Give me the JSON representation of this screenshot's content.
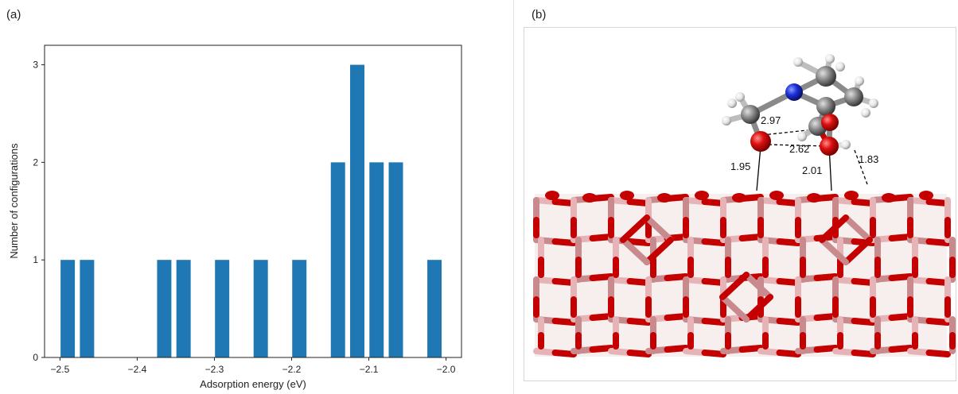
{
  "panel_a": {
    "label": "(a)"
  },
  "panel_b": {
    "label": "(b)",
    "distances": [
      "2.97",
      "2.62",
      "1.95",
      "2.01",
      "1.83"
    ]
  },
  "chart_data": {
    "type": "bar",
    "title": "",
    "xlabel": "Adsorption energy (eV)",
    "ylabel": "Number of configurations",
    "xlim": [
      -2.52,
      -1.98
    ],
    "ylim": [
      0,
      3.2
    ],
    "xticks": [
      -2.5,
      -2.4,
      -2.3,
      -2.2,
      -2.1,
      -2.0
    ],
    "xtick_labels": [
      "−2.5",
      "−2.4",
      "−2.3",
      "−2.2",
      "−2.1",
      "−2.0"
    ],
    "yticks": [
      0,
      1,
      2,
      3
    ],
    "ytick_labels": [
      "0",
      "1",
      "2",
      "3"
    ],
    "bar_width": 0.0185,
    "bar_color": "#1f77b4",
    "x": [
      -2.49,
      -2.465,
      -2.365,
      -2.34,
      -2.29,
      -2.24,
      -2.19,
      -2.14,
      -2.115,
      -2.09,
      -2.065,
      -2.015
    ],
    "values": [
      1,
      1,
      1,
      1,
      1,
      1,
      1,
      2,
      3,
      2,
      2,
      1
    ]
  }
}
